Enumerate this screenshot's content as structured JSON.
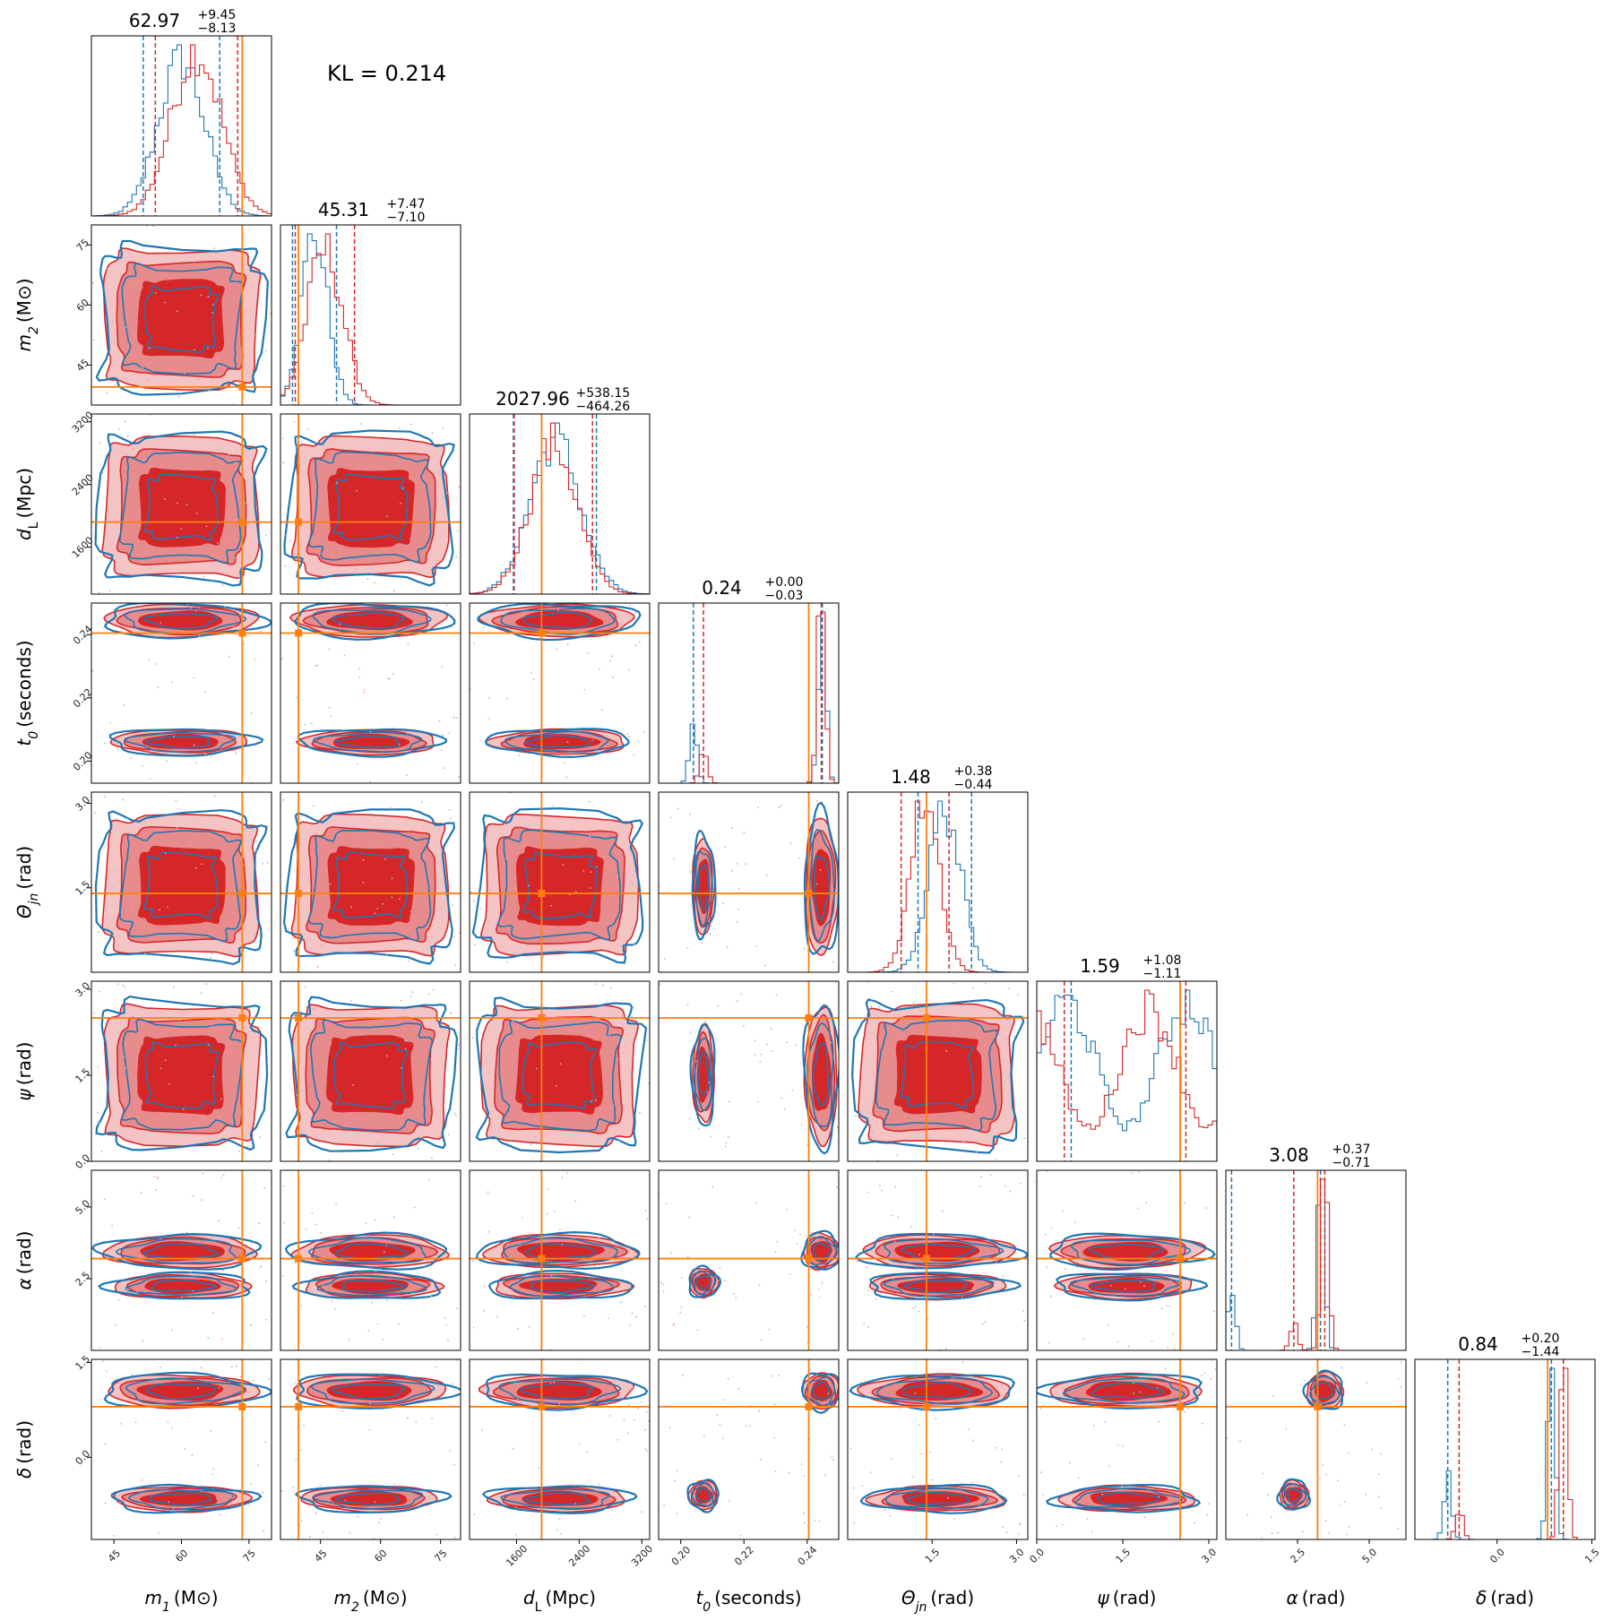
{
  "chart_data": {
    "type": "corner",
    "annotation": "KL = 0.214",
    "colors": {
      "series_a": "#1f77b4",
      "series_b": "#d62728",
      "truth": "#ff7f0e"
    },
    "params": [
      {
        "key": "m1",
        "label_main": "m",
        "label_sub": "1",
        "label_unit": "(M⊙)",
        "median": "62.97",
        "plus": "+9.45",
        "minus": "−8.13",
        "range": [
          40,
          80
        ],
        "ticks": [
          45,
          60,
          75
        ],
        "tick_labels": [
          "45",
          "60",
          "75"
        ],
        "truth": 73.5,
        "q_a": [
          51.5,
          68.5
        ],
        "q_b": [
          54.2,
          72.5
        ]
      },
      {
        "key": "m2",
        "label_main": "m",
        "label_sub": "2",
        "label_unit": "(M⊙)",
        "median": "45.31",
        "plus": "+7.47",
        "minus": "−7.10",
        "range": [
          35,
          80
        ],
        "ticks": [
          45,
          60,
          75
        ],
        "tick_labels": [
          "45",
          "60",
          "75"
        ],
        "truth": 39.5,
        "q_a": [
          38,
          49
        ],
        "q_b": [
          38.7,
          53.5
        ]
      },
      {
        "key": "dL",
        "label_main": "d",
        "label_sub": "L",
        "label_unit": "(Mpc)",
        "median": "2027.96",
        "plus": "+538.15",
        "minus": "−464.26",
        "range": [
          1000,
          3300
        ],
        "ticks": [
          1600,
          2400,
          3200
        ],
        "tick_labels": [
          "1600",
          "2400",
          "3200"
        ],
        "truth": 1920,
        "q_a": [
          1560,
          2620
        ],
        "q_b": [
          1570,
          2570
        ]
      },
      {
        "key": "t0",
        "label_main": "t",
        "label_sub": "0",
        "label_unit": "(seconds)",
        "median": "0.24",
        "plus": "+0.00",
        "minus": "−0.03",
        "range": [
          0.193,
          0.25
        ],
        "ticks": [
          0.2,
          0.22,
          0.24
        ],
        "tick_labels": [
          "0.20",
          "0.22",
          "0.24"
        ],
        "truth": 0.2405,
        "q_a": [
          0.204,
          0.2448
        ],
        "q_b": [
          0.2072,
          0.2445
        ]
      },
      {
        "key": "theta",
        "label_main": "Θ",
        "label_sub": "jn",
        "label_unit": "(rad)",
        "median": "1.48",
        "plus": "+0.38",
        "minus": "−0.44",
        "range": [
          0,
          3.2
        ],
        "ticks": [
          1.5,
          3.0
        ],
        "tick_labels": [
          "1.5",
          "3.0"
        ],
        "truth": 1.4,
        "q_a": [
          1.25,
          2.2
        ],
        "q_b": [
          0.95,
          1.8
        ]
      },
      {
        "key": "psi",
        "label_main": "ψ",
        "label_sub": "",
        "label_unit": "(rad)",
        "median": "1.59",
        "plus": "+1.08",
        "minus": "−1.11",
        "range": [
          0,
          3.14
        ],
        "ticks": [
          0,
          1.5,
          3.0
        ],
        "tick_labels": [
          "0.0",
          "1.5",
          "3.0"
        ],
        "truth": 2.5,
        "q_a": [
          0.6,
          2.5
        ],
        "q_b": [
          0.48,
          2.6
        ]
      },
      {
        "key": "alpha",
        "label_main": "α",
        "label_sub": "",
        "label_unit": "(rad)",
        "median": "3.08",
        "plus": "+0.37",
        "minus": "−0.71",
        "range": [
          0,
          6.28
        ],
        "ticks": [
          2.5,
          5.0
        ],
        "tick_labels": [
          "2.5",
          "5.0"
        ],
        "truth": 3.2,
        "q_a": [
          0.2,
          3.3
        ],
        "q_b": [
          2.37,
          3.45
        ]
      },
      {
        "key": "delta",
        "label_main": "δ",
        "label_sub": "",
        "label_unit": "(rad)",
        "median": "0.84",
        "plus": "+0.20",
        "minus": "−1.44",
        "range": [
          -1.3,
          1.55
        ],
        "ticks": [
          0,
          1.5
        ],
        "tick_labels": [
          "0.0",
          "1.5"
        ],
        "truth": 0.8,
        "q_a": [
          -0.78,
          0.86
        ],
        "q_b": [
          -0.6,
          1.05
        ]
      }
    ],
    "diag_y_ticks": [
      {
        "row": 1,
        "values": [
          45,
          60,
          75
        ],
        "labels": [
          "45",
          "60",
          "75"
        ]
      },
      {
        "row": 2,
        "values": [
          1600,
          2400,
          3200
        ],
        "labels": [
          "1600",
          "2400",
          "3200"
        ]
      },
      {
        "row": 3,
        "values": [
          0.2,
          0.22,
          0.24
        ],
        "labels": [
          "0.20",
          "0.22",
          "0.24"
        ]
      },
      {
        "row": 4,
        "values": [
          1.5,
          3.0
        ],
        "labels": [
          "1.5",
          "3.0"
        ]
      },
      {
        "row": 5,
        "values": [
          0,
          1.5,
          3.0
        ],
        "labels": [
          "0.0",
          "1.5",
          "3.0"
        ]
      },
      {
        "row": 6,
        "values": [
          2.5,
          5.0
        ],
        "labels": [
          "2.5",
          "5.0"
        ]
      },
      {
        "row": 7,
        "values": [
          0,
          1.5
        ],
        "labels": [
          "0.0",
          "1.5"
        ]
      }
    ]
  }
}
